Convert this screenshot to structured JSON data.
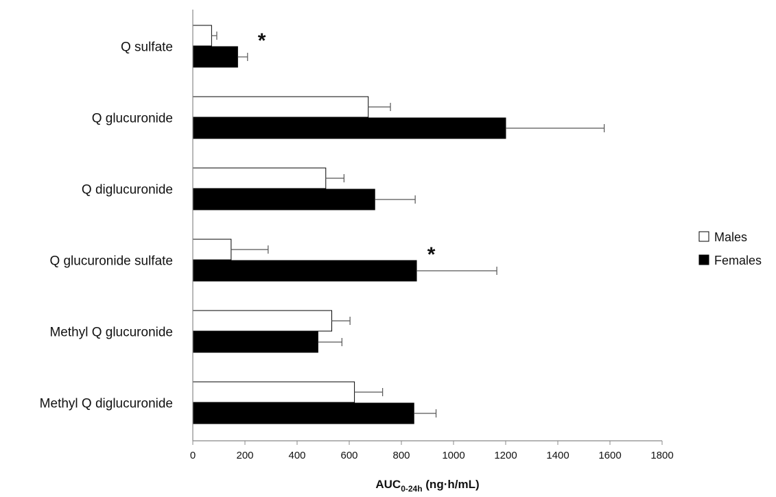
{
  "chart_data": {
    "type": "bar",
    "orientation": "horizontal",
    "title": "",
    "categories": [
      "Q sulfate",
      "Q glucuronide",
      "Q diglucuronide",
      "Q glucuronide sulfate",
      "Methyl Q glucuronide",
      "Methyl Q diglucuronide"
    ],
    "series": [
      {
        "name": "Males",
        "color": "#ffffff",
        "values": [
          72,
          673,
          510,
          147,
          533,
          620
        ],
        "errors": [
          20,
          85,
          70,
          142,
          70,
          108
        ]
      },
      {
        "name": "Females",
        "color": "#000000",
        "values": [
          172,
          1200,
          698,
          858,
          480,
          848
        ],
        "errors": [
          38,
          378,
          155,
          308,
          92,
          85
        ]
      }
    ],
    "xlabel": {
      "base": "AUC",
      "subscript": "0-24h",
      "unit": " (ng·h/mL)"
    },
    "xlim": [
      0,
      1800
    ],
    "xticks": [
      0,
      200,
      400,
      600,
      800,
      1000,
      1200,
      1400,
      1600,
      1800
    ],
    "grid": false,
    "legend_position": "right",
    "annotations": [
      {
        "text": "*",
        "category": "Q sulfate",
        "x": 265
      },
      {
        "text": "*",
        "category": "Q glucuronide sulfate",
        "x": 915
      }
    ]
  }
}
